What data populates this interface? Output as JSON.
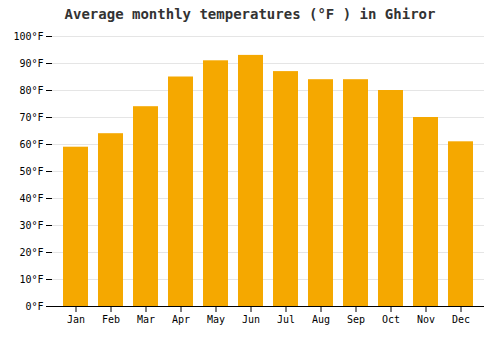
{
  "chart_data": {
    "type": "bar",
    "title": "Average monthly temperatures (°F ) in Ghiror",
    "categories": [
      "Jan",
      "Feb",
      "Mar",
      "Apr",
      "May",
      "Jun",
      "Jul",
      "Aug",
      "Sep",
      "Oct",
      "Nov",
      "Dec"
    ],
    "values": [
      59,
      64,
      74,
      85,
      91,
      93,
      87,
      84,
      84,
      80,
      70,
      61
    ],
    "color": "#F5A800",
    "ylim": [
      0,
      100
    ],
    "yticks": [
      {
        "value": 0,
        "label": "0°F"
      },
      {
        "value": 10,
        "label": "10°F"
      },
      {
        "value": 20,
        "label": "20°F"
      },
      {
        "value": 30,
        "label": "30°F"
      },
      {
        "value": 40,
        "label": "40°F"
      },
      {
        "value": 50,
        "label": "50°F"
      },
      {
        "value": 60,
        "label": "60°F"
      },
      {
        "value": 70,
        "label": "70°F"
      },
      {
        "value": 80,
        "label": "80°F"
      },
      {
        "value": 90,
        "label": "90°F"
      },
      {
        "value": 100,
        "label": "100°F"
      }
    ],
    "grid": true
  }
}
